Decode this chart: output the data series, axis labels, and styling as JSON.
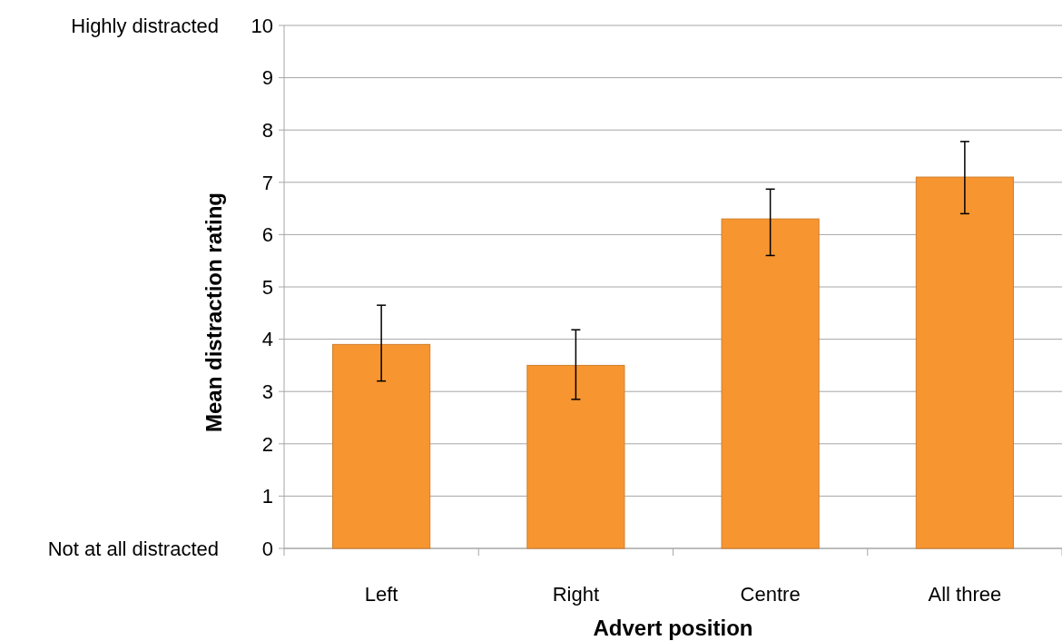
{
  "chart_data": {
    "type": "bar",
    "xlabel": "Advert position",
    "ylabel": "Mean distraction rating",
    "categories": [
      "Left",
      "Right",
      "Centre",
      "All three"
    ],
    "values": [
      3.9,
      3.5,
      6.3,
      7.1
    ],
    "errors": [
      [
        3.2,
        4.65
      ],
      [
        2.85,
        4.18
      ],
      [
        5.6,
        6.87
      ],
      [
        6.4,
        7.78
      ]
    ],
    "color": "#f79530",
    "ylim": [
      0,
      10
    ],
    "yticks": [
      0,
      1,
      2,
      3,
      4,
      5,
      6,
      7,
      8,
      9,
      10
    ],
    "grid": "y",
    "annotations": [
      "Highly distracted",
      "Not at all distracted"
    ]
  }
}
